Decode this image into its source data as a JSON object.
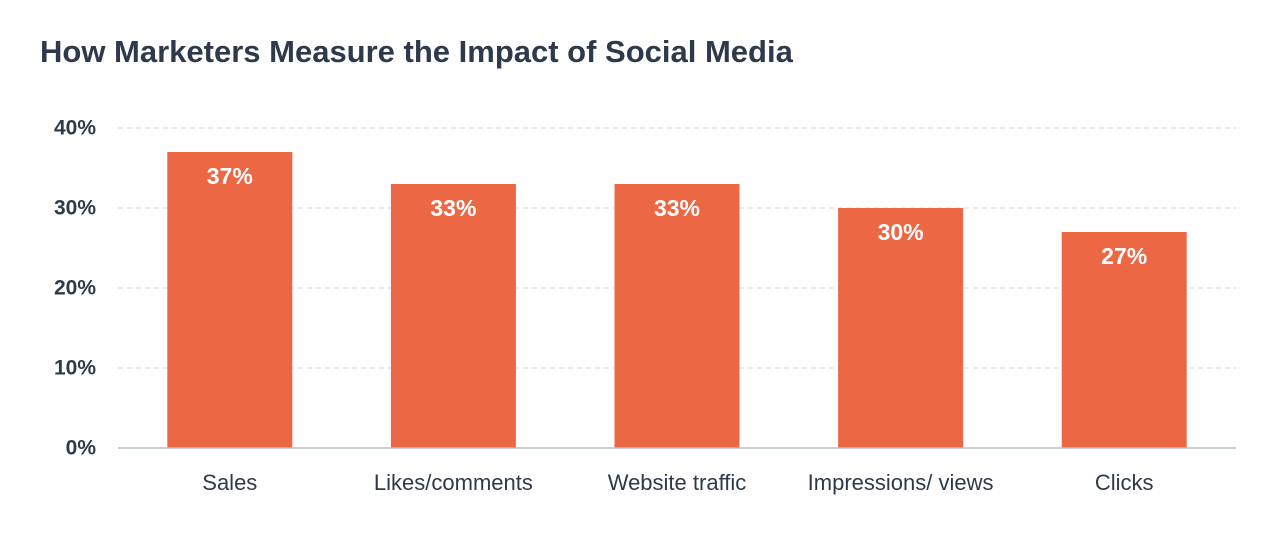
{
  "chart_data": {
    "type": "bar",
    "title": "How Marketers Measure the Impact of Social Media",
    "categories": [
      "Sales",
      "Likes/comments",
      "Website traffic",
      "Impressions/ views",
      "Clicks"
    ],
    "values": [
      37,
      33,
      33,
      30,
      27
    ],
    "data_labels": [
      "37%",
      "33%",
      "33%",
      "30%",
      "27%"
    ],
    "y_ticks": [
      0,
      10,
      20,
      30,
      40
    ],
    "y_tick_labels": [
      "0%",
      "10%",
      "20%",
      "30%",
      "40%"
    ],
    "ylim": [
      0,
      40
    ],
    "grid": true,
    "legend": "none",
    "xlabel": "",
    "ylabel": "",
    "colors": {
      "bar": "#ec6845",
      "title": "#2e3a4b",
      "text": "#2e3a4b",
      "gridline": "#dcdfe4",
      "axis": "#b9c0ca"
    }
  }
}
